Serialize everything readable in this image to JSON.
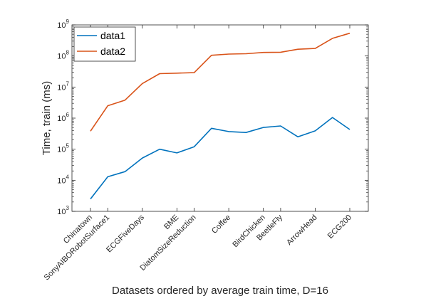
{
  "chart_data": {
    "type": "line",
    "title": "",
    "xlabel": "Datasets ordered by average train time, D=16",
    "ylabel": "Time, train (ms)",
    "yscale": "log",
    "ylim": [
      1000,
      1000000000
    ],
    "y_tick_labels": [
      {
        "base": "10",
        "exp": "3"
      },
      {
        "base": "10",
        "exp": "4"
      },
      {
        "base": "10",
        "exp": "5"
      },
      {
        "base": "10",
        "exp": "6"
      },
      {
        "base": "10",
        "exp": "7"
      },
      {
        "base": "10",
        "exp": "8"
      },
      {
        "base": "10",
        "exp": "9"
      }
    ],
    "x_count": 16,
    "x_tick_labels": [
      {
        "index": 0,
        "label": "Chinatown"
      },
      {
        "index": 1,
        "label": "SonyAIBORobotSurface1"
      },
      {
        "index": 3,
        "label": "ECGFiveDays"
      },
      {
        "index": 5,
        "label": "BME"
      },
      {
        "index": 6,
        "label": "DiatomSizeReduction"
      },
      {
        "index": 8,
        "label": "Coffee"
      },
      {
        "index": 10,
        "label": "BirdChicken"
      },
      {
        "index": 11,
        "label": "BeetleFly"
      },
      {
        "index": 13,
        "label": "ArrowHead"
      },
      {
        "index": 15,
        "label": "ECG200"
      }
    ],
    "legend_position": "top-left",
    "grid": false,
    "series": [
      {
        "name": "data1",
        "color": "#0072BD",
        "values": [
          2500,
          13000,
          19000,
          52000,
          100000,
          76000,
          120000,
          470000,
          370000,
          345000,
          500000,
          560000,
          250000,
          390000,
          1050000,
          430000
        ]
      },
      {
        "name": "data2",
        "color": "#D95319",
        "values": [
          380000,
          2500000,
          3800000,
          13000000,
          27000000,
          28000000,
          29000000,
          105000000,
          115000000,
          118000000,
          130000000,
          132000000,
          165000000,
          175000000,
          370000000,
          540000000
        ]
      }
    ]
  }
}
